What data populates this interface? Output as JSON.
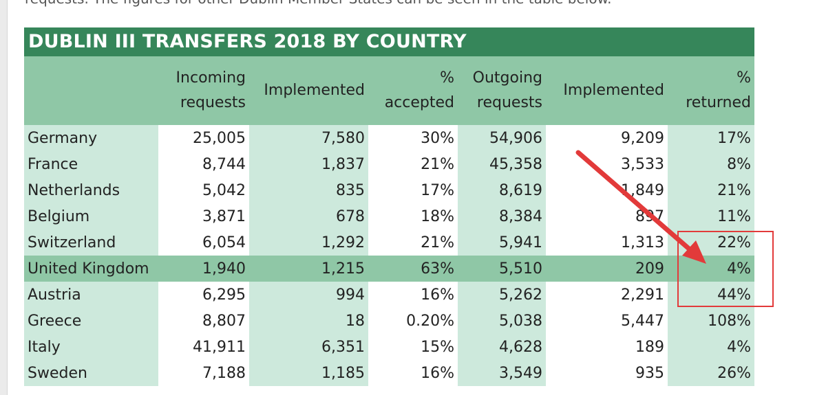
{
  "intro": {
    "text": "requests. The figures for other Dublin Member States can be seen in the table below."
  },
  "table": {
    "title": "DUBLIN III TRANSFERS 2018 BY COUNTRY",
    "headers": {
      "country": "",
      "incoming_1": "Incoming",
      "incoming_2": "requests",
      "implemented": "Implemented",
      "accepted_1": "%",
      "accepted_2": "accepted",
      "outgoing_1": "Outgoing",
      "outgoing_2": "requests",
      "implemented2": "Implemented",
      "returned_1": "%",
      "returned_2": "returned"
    },
    "rows": [
      {
        "country": "Germany",
        "incoming": "25,005",
        "implemented": "7,580",
        "accepted": "30%",
        "outgoing": "54,906",
        "implemented2": "9,209",
        "returned": "17%"
      },
      {
        "country": "France",
        "incoming": "8,744",
        "implemented": "1,837",
        "accepted": "21%",
        "outgoing": "45,358",
        "implemented2": "3,533",
        "returned": "8%"
      },
      {
        "country": "Netherlands",
        "incoming": "5,042",
        "implemented": "835",
        "accepted": "17%",
        "outgoing": "8,619",
        "implemented2": "1,849",
        "returned": "21%"
      },
      {
        "country": "Belgium",
        "incoming": "3,871",
        "implemented": "678",
        "accepted": "18%",
        "outgoing": "8,384",
        "implemented2": "897",
        "returned": "11%"
      },
      {
        "country": "Switzerland",
        "incoming": "6,054",
        "implemented": "1,292",
        "accepted": "21%",
        "outgoing": "5,941",
        "implemented2": "1,313",
        "returned": "22%"
      },
      {
        "country": "United Kingdom",
        "incoming": "1,940",
        "implemented": "1,215",
        "accepted": "63%",
        "outgoing": "5,510",
        "implemented2": "209",
        "returned": "4%"
      },
      {
        "country": "Austria",
        "incoming": "6,295",
        "implemented": "994",
        "accepted": "16%",
        "outgoing": "5,262",
        "implemented2": "2,291",
        "returned": "44%"
      },
      {
        "country": "Greece",
        "incoming": "8,807",
        "implemented": "18",
        "accepted": "0.20%",
        "outgoing": "5,038",
        "implemented2": "5,447",
        "returned": "108%"
      },
      {
        "country": "Italy",
        "incoming": "41,911",
        "implemented": "6,351",
        "accepted": "15%",
        "outgoing": "4,628",
        "implemented2": "189",
        "returned": "4%"
      },
      {
        "country": "Sweden",
        "incoming": "7,188",
        "implemented": "1,185",
        "accepted": "16%",
        "outgoing": "3,549",
        "implemented2": "935",
        "returned": "26%"
      }
    ]
  },
  "colors": {
    "title_bg": "#36865a",
    "header_bg": "#8fc7a6",
    "band_light": "#cde9dc",
    "highlight_row": "#8fc7a6",
    "annotation_red": "#e23a3a"
  }
}
